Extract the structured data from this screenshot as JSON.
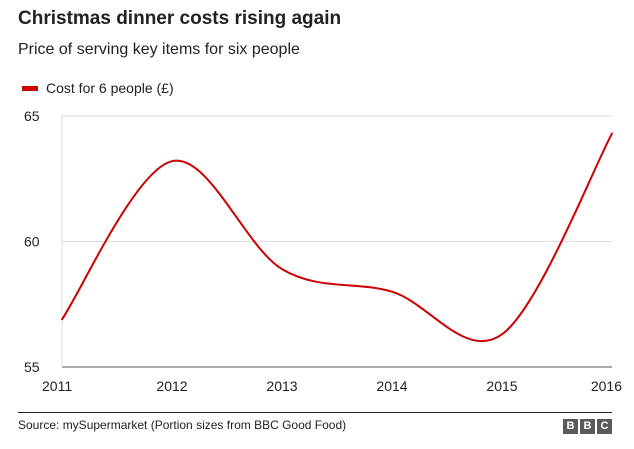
{
  "chart_data": {
    "type": "line",
    "title": "Christmas dinner costs rising again",
    "subtitle": "Price of serving key items for six people",
    "xlabel": "",
    "ylabel": "",
    "x": [
      2011,
      2012,
      2013,
      2014,
      2015,
      2016
    ],
    "xticks": [
      "2011",
      "2012",
      "2013",
      "2014",
      "2015",
      "2016"
    ],
    "yticks": [
      "55",
      "60",
      "65"
    ],
    "ylim": [
      55,
      65
    ],
    "xlim": [
      2011,
      2016
    ],
    "grid": true,
    "legend_position": "top-left",
    "series": [
      {
        "name": "Cost for 6 people (£)",
        "color": "#cc0000",
        "x": [
          2011,
          2012,
          2013,
          2014,
          2015,
          2016
        ],
        "values": [
          56.9,
          63.2,
          58.9,
          58.0,
          56.3,
          64.3
        ]
      }
    ]
  },
  "source": "Source: mySupermarket (Portion sizes from BBC Good Food)",
  "logo": [
    "B",
    "B",
    "C"
  ]
}
